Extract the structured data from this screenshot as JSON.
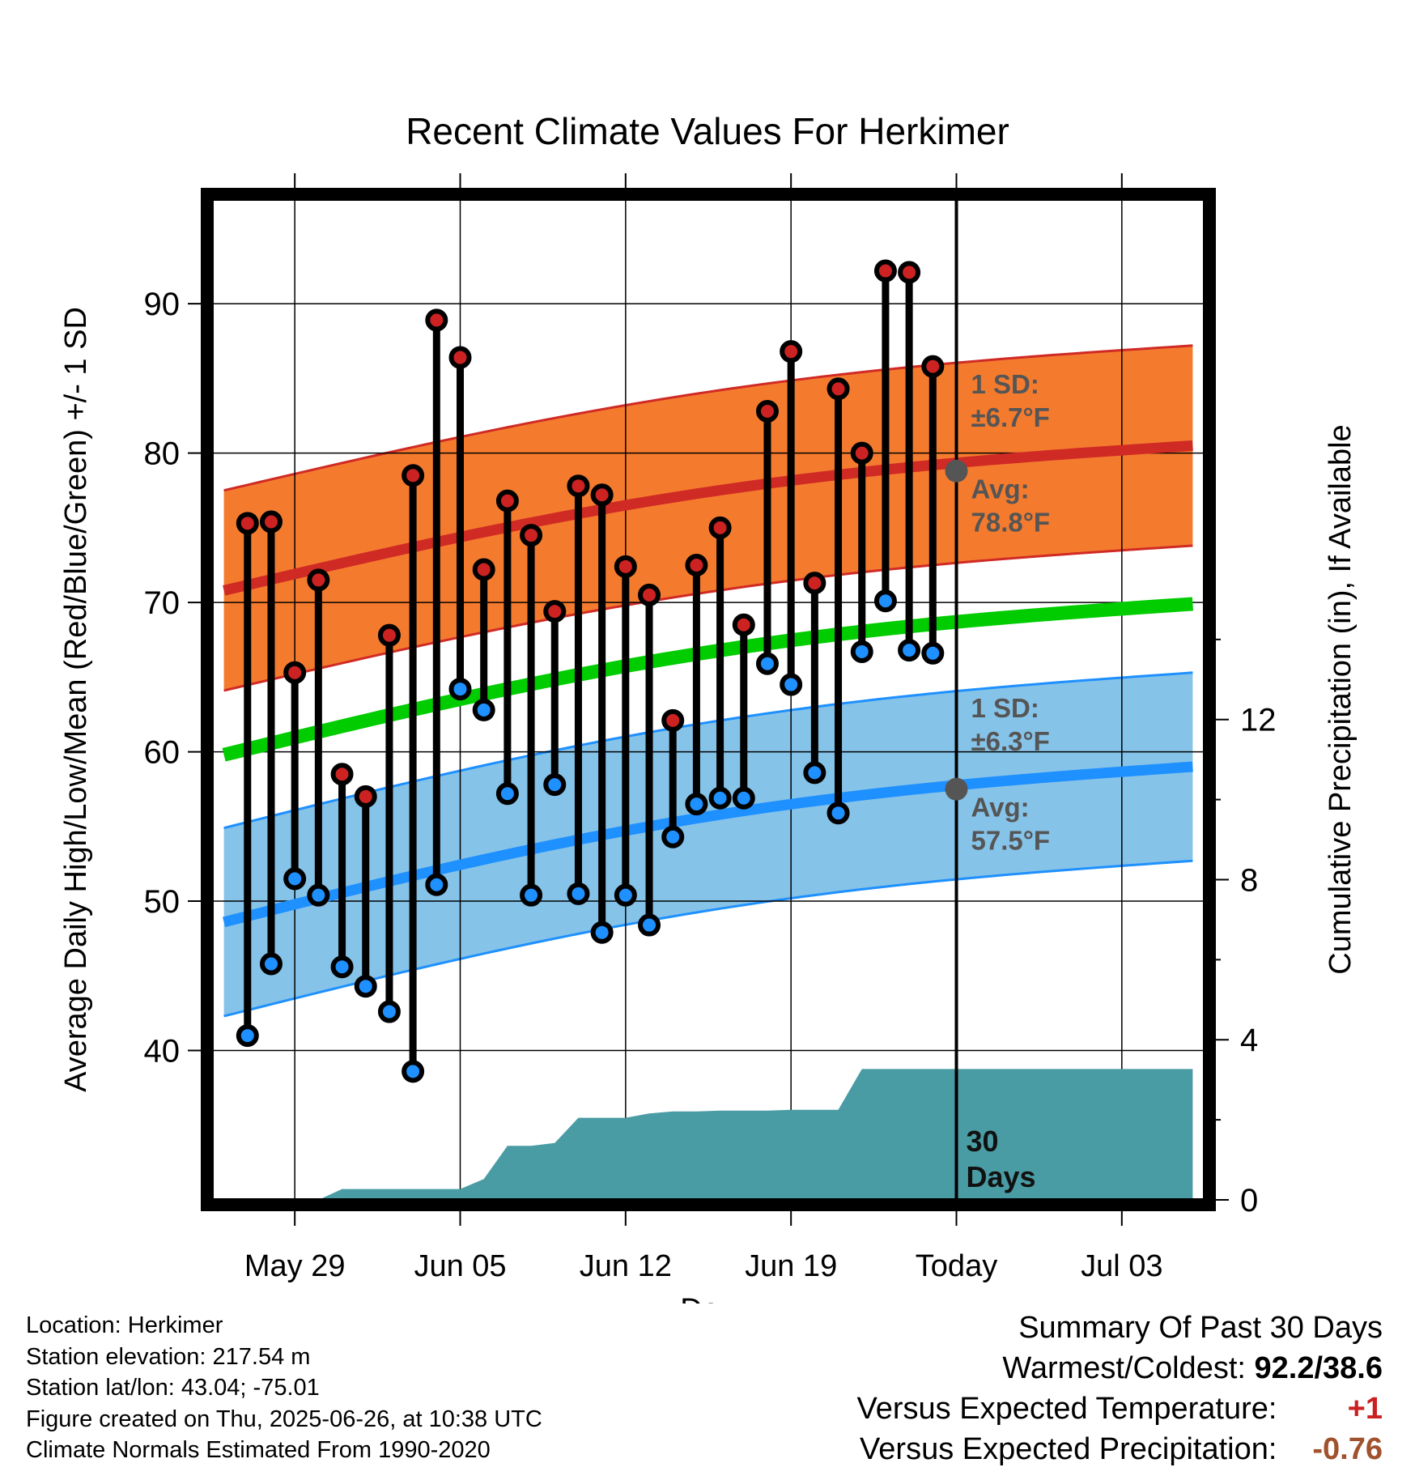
{
  "chart_data": {
    "type": "line",
    "title": "Recent Climate Values For Herkimer",
    "xlabel": "Day",
    "ylabel": "Average Daily High/Low/Mean (Red/Blue/Green) +/- 1 SD",
    "y2label": "Cumulative Precipitation (in), If Available",
    "x_tick_labels": [
      "May 29",
      "Jun 05",
      "Jun 12",
      "Jun 19",
      "Today",
      "Jul 03"
    ],
    "x_tick_days": [
      3,
      10,
      17,
      24,
      31,
      38
    ],
    "xlim": [
      -0.5,
      41.5
    ],
    "ylim": [
      30,
      97
    ],
    "y_ticks": [
      40,
      50,
      60,
      70,
      80,
      90
    ],
    "y2lim": [
      0,
      25
    ],
    "y2_ticks": [
      0,
      4,
      8,
      12
    ],
    "today_day": 31,
    "window_label": "30 Days",
    "daily_high": [
      75.3,
      75.4,
      65.3,
      71.5,
      58.5,
      57.0,
      67.8,
      78.5,
      88.9,
      86.4,
      72.2,
      76.8,
      74.5,
      69.4,
      77.8,
      77.2,
      72.4,
      70.5,
      62.1,
      72.5,
      75.0,
      68.5,
      82.8,
      86.8,
      71.3,
      84.3,
      80.0,
      92.2,
      92.1,
      85.8
    ],
    "daily_low": [
      41.0,
      45.8,
      51.5,
      50.4,
      45.6,
      44.3,
      42.6,
      38.6,
      51.1,
      64.2,
      62.8,
      57.2,
      50.4,
      57.8,
      50.5,
      47.9,
      50.4,
      48.4,
      54.3,
      56.5,
      56.9,
      56.9,
      65.9,
      64.5,
      58.6,
      55.9,
      66.7,
      70.1,
      66.8,
      66.6
    ],
    "normal_days": [
      0,
      41
    ],
    "normal_high": [
      70.8,
      80.5
    ],
    "normal_high_sd": 6.7,
    "normal_mean": [
      59.8,
      69.9
    ],
    "normal_low": [
      48.6,
      59.0
    ],
    "normal_low_sd": 6.3,
    "precip_days": [
      0,
      4,
      5,
      10,
      11,
      12,
      13,
      14,
      15,
      16,
      17,
      18,
      19,
      20,
      21,
      22,
      23,
      24,
      25,
      26,
      27,
      41
    ],
    "precip_cum": [
      0.0,
      0.0,
      0.27,
      0.27,
      0.52,
      1.35,
      1.35,
      1.42,
      2.05,
      2.05,
      2.05,
      2.16,
      2.21,
      2.21,
      2.23,
      2.23,
      2.23,
      2.25,
      2.25,
      2.25,
      3.27,
      3.27
    ],
    "annotations": {
      "high_sd_label": "1 SD:",
      "high_sd_value": "±6.7°F",
      "high_avg_label": "Avg:",
      "high_avg_value": "78.8°F",
      "low_sd_label": "1 SD:",
      "low_sd_value": "±6.3°F",
      "low_avg_label": "Avg:",
      "low_avg_value": "57.5°F",
      "today_high_avg": 78.8,
      "today_low_avg": 57.5
    },
    "colors": {
      "high_band": "#f47b2e",
      "high_line": "#d02a25",
      "mean_line": "#00cc00",
      "low_band": "#86c3e8",
      "low_line": "#1e90ff",
      "precip": "#4a9ca4",
      "annotation": "#555555"
    },
    "grid": true
  },
  "info": {
    "location": "Location: Herkimer",
    "elevation": "Station elevation: 217.54 m",
    "latlon": "Station lat/lon: 43.04; -75.01",
    "created": "Figure created on Thu, 2025-06-26, at 10:38 UTC",
    "normals": "Climate Normals Estimated From 1990-2020"
  },
  "summary": {
    "title": "Summary Of Past 30 Days",
    "warm_cold_label": "Warmest/Coldest:",
    "warm_cold_value": "92.2/38.6",
    "temp_label": "Versus Expected Temperature:",
    "temp_value": "+1",
    "precip_label": "Versus Expected Precipitation:",
    "precip_value": "-0.76"
  }
}
